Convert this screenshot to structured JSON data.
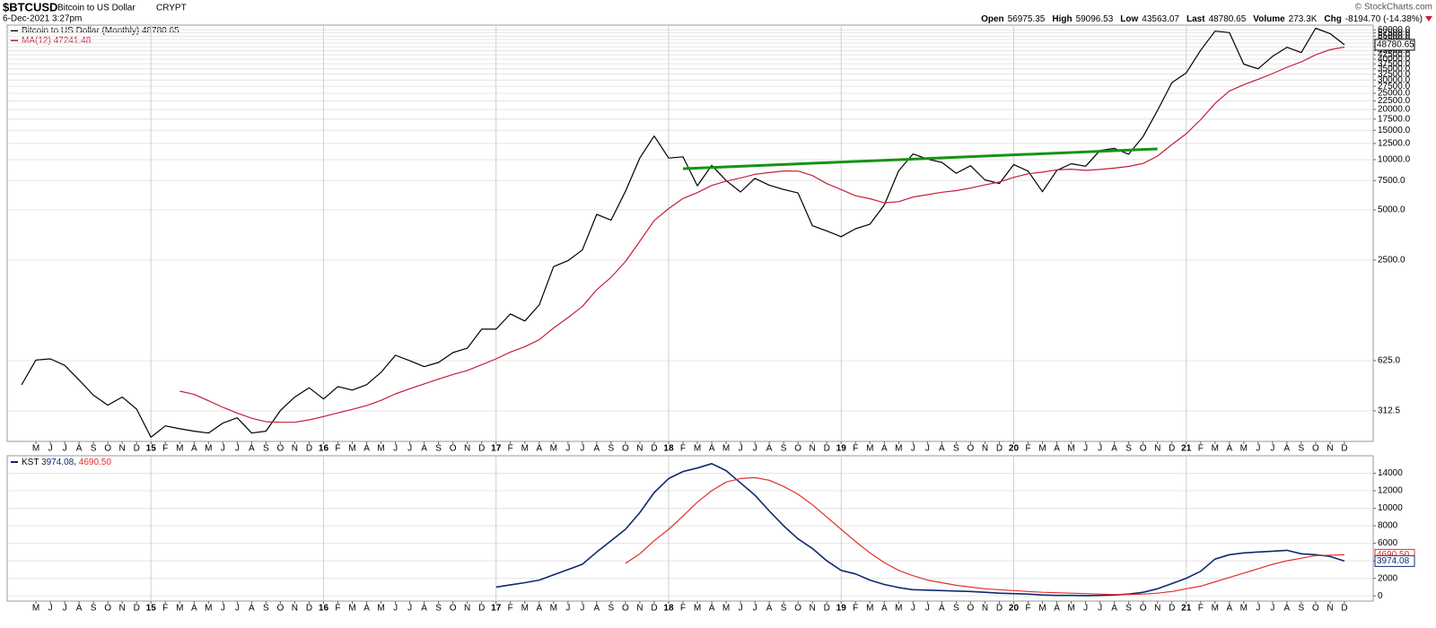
{
  "chart_data": {
    "type": "line",
    "header": {
      "symbol": "$BTCUSD",
      "name": "Bitcoin to US Dollar",
      "exchange": "CRYPT",
      "date": "6-Dec-2021 3:27pm",
      "credit": "© StockCharts.com",
      "stats": [
        {
          "label": "Open",
          "value": "56975.35"
        },
        {
          "label": "High",
          "value": "59096.53"
        },
        {
          "label": "Low",
          "value": "43563.07"
        },
        {
          "label": "Last",
          "value": "48780.65"
        },
        {
          "label": "Volume",
          "value": "273.3K"
        },
        {
          "label": "Chg",
          "value": "-8194.70 (-14.38%)"
        }
      ]
    },
    "log_scale": true,
    "grid": true,
    "xlim": [
      "2014-03",
      "2022-02"
    ],
    "ylim": [
      205,
      64000
    ],
    "yticks": [
      312.5,
      {
        "value": 625,
        "label": "625.0"
      },
      {
        "value": 2500,
        "label": "2500.0"
      },
      {
        "value": 5000,
        "label": "5000.0"
      },
      {
        "value": 7500,
        "label": "7500.0"
      },
      {
        "value": 10000,
        "label": "10000.0"
      },
      {
        "value": 12500,
        "label": "12500.0"
      },
      {
        "value": 15000,
        "label": "15000.0"
      },
      {
        "value": 17500,
        "label": "17500.0"
      },
      {
        "value": 20000,
        "label": "20000.0"
      },
      {
        "value": 22500,
        "label": "22500.0"
      },
      {
        "value": 25000,
        "label": "25000.0"
      },
      {
        "value": 27500,
        "label": "27500.0"
      },
      {
        "value": 30000,
        "label": "30000.0"
      },
      {
        "value": 32500,
        "label": "32500.0"
      },
      {
        "value": 35000,
        "label": "35000.0"
      },
      {
        "value": 37500,
        "label": "37500.0"
      },
      {
        "value": 40000,
        "label": "40000.0"
      },
      {
        "value": 42500,
        "label": "42500.0"
      },
      {
        "value": 45000,
        "label": "45000.0"
      },
      {
        "value": 47500,
        "label": "47500.0"
      },
      {
        "value": 50000,
        "label": "50000.0"
      },
      {
        "value": 52500,
        "label": "52500.0"
      },
      {
        "value": 55000,
        "label": "55000.0"
      },
      {
        "value": 57500,
        "label": "57500.0"
      },
      {
        "value": 60000,
        "label": "60000.0"
      }
    ],
    "x": [
      "2014-04",
      "2014-05",
      "2014-06",
      "2014-07",
      "2014-08",
      "2014-09",
      "2014-10",
      "2014-11",
      "2014-12",
      "2015-01",
      "2015-02",
      "2015-03",
      "2015-04",
      "2015-05",
      "2015-06",
      "2015-07",
      "2015-08",
      "2015-09",
      "2015-10",
      "2015-11",
      "2015-12",
      "2016-01",
      "2016-02",
      "2016-03",
      "2016-04",
      "2016-05",
      "2016-06",
      "2016-07",
      "2016-08",
      "2016-09",
      "2016-10",
      "2016-11",
      "2016-12",
      "2017-01",
      "2017-02",
      "2017-03",
      "2017-04",
      "2017-05",
      "2017-06",
      "2017-07",
      "2017-08",
      "2017-09",
      "2017-10",
      "2017-11",
      "2017-12",
      "2018-01",
      "2018-02",
      "2018-03",
      "2018-04",
      "2018-05",
      "2018-06",
      "2018-07",
      "2018-08",
      "2018-09",
      "2018-10",
      "2018-11",
      "2018-12",
      "2019-01",
      "2019-02",
      "2019-03",
      "2019-04",
      "2019-05",
      "2019-06",
      "2019-07",
      "2019-08",
      "2019-09",
      "2019-10",
      "2019-11",
      "2019-12",
      "2020-01",
      "2020-02",
      "2020-03",
      "2020-04",
      "2020-05",
      "2020-06",
      "2020-07",
      "2020-08",
      "2020-09",
      "2020-10",
      "2020-11",
      "2020-12",
      "2021-01",
      "2021-02",
      "2021-03",
      "2021-04",
      "2021-05",
      "2021-06",
      "2021-07",
      "2021-08",
      "2021-09",
      "2021-10",
      "2021-11",
      "2021-12"
    ],
    "xticks": [
      {
        "value": "2014-05",
        "label": "M"
      },
      {
        "value": "2014-06",
        "label": "J"
      },
      {
        "value": "2014-07",
        "label": "J"
      },
      {
        "value": "2014-08",
        "label": "A"
      },
      {
        "value": "2014-09",
        "label": "S"
      },
      {
        "value": "2014-10",
        "label": "O"
      },
      {
        "value": "2014-11",
        "label": "N"
      },
      {
        "value": "2014-12",
        "label": "D"
      },
      {
        "value": "2015-01",
        "label": "15"
      },
      {
        "value": "2015-02",
        "label": "F"
      },
      {
        "value": "2015-03",
        "label": "M"
      },
      {
        "value": "2015-04",
        "label": "A"
      },
      {
        "value": "2015-05",
        "label": "M"
      },
      {
        "value": "2015-06",
        "label": "J"
      },
      {
        "value": "2015-07",
        "label": "J"
      },
      {
        "value": "2015-08",
        "label": "A"
      },
      {
        "value": "2015-09",
        "label": "S"
      },
      {
        "value": "2015-10",
        "label": "O"
      },
      {
        "value": "2015-11",
        "label": "N"
      },
      {
        "value": "2015-12",
        "label": "D"
      },
      {
        "value": "2016-01",
        "label": "16"
      },
      {
        "value": "2016-02",
        "label": "F"
      },
      {
        "value": "2016-03",
        "label": "M"
      },
      {
        "value": "2016-04",
        "label": "A"
      },
      {
        "value": "2016-05",
        "label": "M"
      },
      {
        "value": "2016-06",
        "label": "J"
      },
      {
        "value": "2016-07",
        "label": "J"
      },
      {
        "value": "2016-08",
        "label": "A"
      },
      {
        "value": "2016-09",
        "label": "S"
      },
      {
        "value": "2016-10",
        "label": "O"
      },
      {
        "value": "2016-11",
        "label": "N"
      },
      {
        "value": "2016-12",
        "label": "D"
      },
      {
        "value": "2017-01",
        "label": "17"
      },
      {
        "value": "2017-02",
        "label": "F"
      },
      {
        "value": "2017-03",
        "label": "M"
      },
      {
        "value": "2017-04",
        "label": "A"
      },
      {
        "value": "2017-05",
        "label": "M"
      },
      {
        "value": "2017-06",
        "label": "J"
      },
      {
        "value": "2017-07",
        "label": "J"
      },
      {
        "value": "2017-08",
        "label": "A"
      },
      {
        "value": "2017-09",
        "label": "S"
      },
      {
        "value": "2017-10",
        "label": "O"
      },
      {
        "value": "2017-11",
        "label": "N"
      },
      {
        "value": "2017-12",
        "label": "D"
      },
      {
        "value": "2018-01",
        "label": "18"
      },
      {
        "value": "2018-02",
        "label": "F"
      },
      {
        "value": "2018-03",
        "label": "M"
      },
      {
        "value": "2018-04",
        "label": "A"
      },
      {
        "value": "2018-05",
        "label": "M"
      },
      {
        "value": "2018-06",
        "label": "J"
      },
      {
        "value": "2018-07",
        "label": "J"
      },
      {
        "value": "2018-08",
        "label": "A"
      },
      {
        "value": "2018-09",
        "label": "S"
      },
      {
        "value": "2018-10",
        "label": "O"
      },
      {
        "value": "2018-11",
        "label": "N"
      },
      {
        "value": "2018-12",
        "label": "D"
      },
      {
        "value": "2019-01",
        "label": "19"
      },
      {
        "value": "2019-02",
        "label": "F"
      },
      {
        "value": "2019-03",
        "label": "M"
      },
      {
        "value": "2019-04",
        "label": "A"
      },
      {
        "value": "2019-05",
        "label": "M"
      },
      {
        "value": "2019-06",
        "label": "J"
      },
      {
        "value": "2019-07",
        "label": "J"
      },
      {
        "value": "2019-08",
        "label": "A"
      },
      {
        "value": "2019-09",
        "label": "S"
      },
      {
        "value": "2019-10",
        "label": "O"
      },
      {
        "value": "2019-11",
        "label": "N"
      },
      {
        "value": "2019-12",
        "label": "D"
      },
      {
        "value": "2020-01",
        "label": "20"
      },
      {
        "value": "2020-02",
        "label": "F"
      },
      {
        "value": "2020-03",
        "label": "M"
      },
      {
        "value": "2020-04",
        "label": "A"
      },
      {
        "value": "2020-05",
        "label": "M"
      },
      {
        "value": "2020-06",
        "label": "J"
      },
      {
        "value": "2020-07",
        "label": "J"
      },
      {
        "value": "2020-08",
        "label": "A"
      },
      {
        "value": "2020-09",
        "label": "S"
      },
      {
        "value": "2020-10",
        "label": "O"
      },
      {
        "value": "2020-11",
        "label": "N"
      },
      {
        "value": "2020-12",
        "label": "D"
      },
      {
        "value": "2021-01",
        "label": "21"
      },
      {
        "value": "2021-02",
        "label": "F"
      },
      {
        "value": "2021-03",
        "label": "M"
      },
      {
        "value": "2021-04",
        "label": "A"
      },
      {
        "value": "2021-05",
        "label": "M"
      },
      {
        "value": "2021-06",
        "label": "J"
      },
      {
        "value": "2021-07",
        "label": "J"
      },
      {
        "value": "2021-08",
        "label": "A"
      },
      {
        "value": "2021-09",
        "label": "S"
      },
      {
        "value": "2021-10",
        "label": "O"
      },
      {
        "value": "2021-11",
        "label": "N"
      },
      {
        "value": "2021-12",
        "label": "D"
      }
    ],
    "series": [
      {
        "name": "Bitcoin to US Dollar (Monthly)",
        "color": "#000000",
        "values": [
          447,
          630,
          640,
          586,
          478,
          388,
          338,
          378,
          320,
          217,
          254,
          244,
          236,
          230,
          264,
          284,
          230,
          236,
          314,
          378,
          430,
          368,
          437,
          416,
          448,
          531,
          673,
          624,
          575,
          609,
          698,
          742,
          964,
          965,
          1190,
          1080,
          1348,
          2286,
          2480,
          2875,
          4703,
          4338,
          6468,
          10233,
          13860,
          10221,
          10397,
          6973,
          9240,
          7494,
          6404,
          7730,
          7033,
          6625,
          6318,
          4017,
          3742,
          3457,
          3854,
          4105,
          5350,
          8574,
          10817,
          10085,
          9630,
          8293,
          9199,
          7569,
          7193,
          9350,
          8544,
          6424,
          8630,
          9455,
          9135,
          11351,
          11681,
          10784,
          13781,
          19714,
          28949,
          33108,
          45137,
          58918,
          57750,
          37332,
          35040,
          41626,
          47166,
          43824,
          61318,
          57005,
          48780.65
        ]
      },
      {
        "name": "MA(12)",
        "color": "#c41e3a",
        "values": [
          null,
          null,
          null,
          null,
          null,
          null,
          null,
          null,
          null,
          null,
          null,
          410,
          392,
          359,
          328,
          303,
          282,
          269,
          267,
          267,
          276,
          289,
          304,
          319,
          336,
          361,
          395,
          424,
          453,
          484,
          516,
          546,
          590,
          640,
          703,
          758,
          833,
          980,
          1130,
          1318,
          1662,
          1972,
          2453,
          3244,
          4319,
          5090,
          5857,
          6349,
          7006,
          7440,
          7767,
          8172,
          8366,
          8557,
          8544,
          8026,
          7183,
          6619,
          6074,
          5835,
          5511,
          5601,
          5969,
          6165,
          6381,
          6520,
          6760,
          7056,
          7344,
          7835,
          8226,
          8419,
          8692,
          8766,
          8626,
          8731,
          8902,
          9110,
          9491,
          10504,
          12317,
          14296,
          17346,
          21720,
          25814,
          28137,
          30295,
          32818,
          35775,
          38529,
          42490,
          45598,
          47241.48
        ]
      }
    ],
    "trend_line": {
      "color": "#149414",
      "x": [
        "2018-02",
        "2020-11"
      ],
      "y": [
        8830,
        11600
      ]
    },
    "lower_panel": {
      "type": "line",
      "ylim": [
        -600,
        16000
      ],
      "yticks": [
        0,
        2000,
        4000,
        6000,
        8000,
        10000,
        12000,
        14000
      ],
      "series": [
        {
          "name": "KST",
          "color": "#0d2b6e",
          "values": [
            null,
            null,
            null,
            null,
            null,
            null,
            null,
            null,
            null,
            null,
            null,
            null,
            null,
            null,
            null,
            null,
            null,
            null,
            null,
            null,
            null,
            null,
            null,
            null,
            null,
            null,
            null,
            null,
            null,
            null,
            null,
            null,
            null,
            1000,
            1250,
            1500,
            1800,
            2400,
            3000,
            3600,
            5000,
            6300,
            7600,
            9500,
            11800,
            13400,
            14200,
            14600,
            15100,
            14300,
            12900,
            11500,
            9700,
            8000,
            6500,
            5400,
            4000,
            2900,
            2500,
            1800,
            1300,
            950,
            700,
            650,
            600,
            550,
            500,
            400,
            300,
            250,
            200,
            100,
            50,
            50,
            30,
            50,
            100,
            200,
            400,
            800,
            1400,
            2000,
            2800,
            4200,
            4700,
            4900,
            5000,
            5100,
            5200,
            4800,
            4700,
            4500,
            3974.08
          ]
        },
        {
          "color": "#e0302a",
          "last_label": "4690.50",
          "values": [
            null,
            null,
            null,
            null,
            null,
            null,
            null,
            null,
            null,
            null,
            null,
            null,
            null,
            null,
            null,
            null,
            null,
            null,
            null,
            null,
            null,
            null,
            null,
            null,
            null,
            null,
            null,
            null,
            null,
            null,
            null,
            null,
            null,
            null,
            null,
            null,
            null,
            null,
            null,
            null,
            null,
            null,
            3700,
            4800,
            6300,
            7600,
            9100,
            10700,
            12000,
            13000,
            13400,
            13500,
            13200,
            12500,
            11600,
            10400,
            9000,
            7600,
            6200,
            4900,
            3800,
            2900,
            2300,
            1800,
            1500,
            1200,
            1000,
            800,
            700,
            600,
            500,
            400,
            350,
            300,
            250,
            200,
            150,
            150,
            200,
            300,
            500,
            800,
            1100,
            1600,
            2100,
            2600,
            3100,
            3600,
            4000,
            4300,
            4600,
            4650,
            4690.5
          ]
        }
      ]
    }
  }
}
